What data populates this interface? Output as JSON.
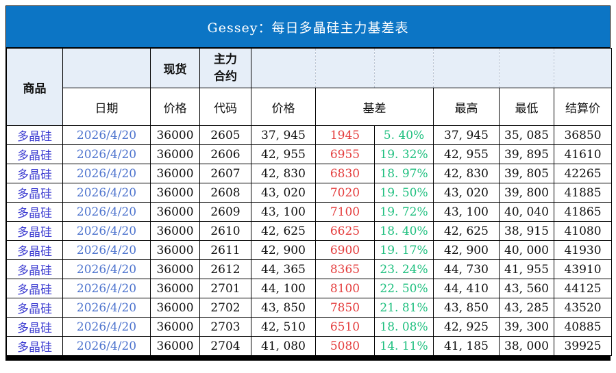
{
  "title": "Gessey：每日多晶硅主力基差表",
  "header": {
    "product": "商品",
    "spot_group": "现货",
    "main_contract_group": "主力合约",
    "date": "日期",
    "spot_price": "价格",
    "code": "代码",
    "price": "价格",
    "basis": "基差",
    "high": "最高",
    "low": "最低",
    "settle": "结算价"
  },
  "colors": {
    "title_bar": "#0C75C5",
    "title_text": "#ffffff",
    "header_tint": "#E6EEF8",
    "product_text": "#3A3AD0",
    "date_text": "#4E74CE",
    "basis_text": "#E43B3B",
    "basis_pct_text": "#1DBF7E",
    "body_text": "#101010",
    "grid": "#000000"
  },
  "rows": [
    {
      "product": "多晶硅",
      "date": "2026/4/20",
      "spot": "36000",
      "code": "2605",
      "price": "37, 945",
      "basis": "1945",
      "basis_pct": "5. 40%",
      "high": "37, 945",
      "low": "35, 085",
      "settle": "36850"
    },
    {
      "product": "多晶硅",
      "date": "2026/4/20",
      "spot": "36000",
      "code": "2606",
      "price": "42, 955",
      "basis": "6955",
      "basis_pct": "19. 32%",
      "high": "42, 955",
      "low": "39, 895",
      "settle": "41610"
    },
    {
      "product": "多晶硅",
      "date": "2026/4/20",
      "spot": "36000",
      "code": "2607",
      "price": "42, 830",
      "basis": "6830",
      "basis_pct": "18. 97%",
      "high": "42, 830",
      "low": "39, 805",
      "settle": "42265"
    },
    {
      "product": "多晶硅",
      "date": "2026/4/20",
      "spot": "36000",
      "code": "2608",
      "price": "43, 020",
      "basis": "7020",
      "basis_pct": "19. 50%",
      "high": "43, 020",
      "low": "39, 800",
      "settle": "41885"
    },
    {
      "product": "多晶硅",
      "date": "2026/4/20",
      "spot": "36000",
      "code": "2609",
      "price": "43, 100",
      "basis": "7100",
      "basis_pct": "19. 72%",
      "high": "43, 100",
      "low": "40, 040",
      "settle": "41865"
    },
    {
      "product": "多晶硅",
      "date": "2026/4/20",
      "spot": "36000",
      "code": "2610",
      "price": "42, 625",
      "basis": "6625",
      "basis_pct": "18. 40%",
      "high": "42, 625",
      "low": "38, 915",
      "settle": "41080"
    },
    {
      "product": "多晶硅",
      "date": "2026/4/20",
      "spot": "36000",
      "code": "2611",
      "price": "42, 900",
      "basis": "6900",
      "basis_pct": "19. 17%",
      "high": "42, 900",
      "low": "40, 000",
      "settle": "41930"
    },
    {
      "product": "多晶硅",
      "date": "2026/4/20",
      "spot": "36000",
      "code": "2612",
      "price": "44, 365",
      "basis": "8365",
      "basis_pct": "23. 24%",
      "high": "44, 730",
      "low": "41, 955",
      "settle": "43910"
    },
    {
      "product": "多晶硅",
      "date": "2026/4/20",
      "spot": "36000",
      "code": "2701",
      "price": "44, 100",
      "basis": "8100",
      "basis_pct": "22. 50%",
      "high": "44, 410",
      "low": "43, 560",
      "settle": "44125"
    },
    {
      "product": "多晶硅",
      "date": "2026/4/20",
      "spot": "36000",
      "code": "2702",
      "price": "43, 850",
      "basis": "7850",
      "basis_pct": "21. 81%",
      "high": "43, 850",
      "low": "43, 285",
      "settle": "43520"
    },
    {
      "product": "多晶硅",
      "date": "2026/4/20",
      "spot": "36000",
      "code": "2703",
      "price": "42, 510",
      "basis": "6510",
      "basis_pct": "18. 08%",
      "high": "42, 925",
      "low": "39, 300",
      "settle": "40885"
    },
    {
      "product": "多晶硅",
      "date": "2026/4/20",
      "spot": "36000",
      "code": "2704",
      "price": "41, 080",
      "basis": "5080",
      "basis_pct": "14. 11%",
      "high": "41, 185",
      "low": "38, 000",
      "settle": "39925"
    }
  ],
  "chart_data": {
    "type": "table",
    "title": "Gessey：每日多晶硅主力基差表",
    "columns": [
      "商品",
      "日期",
      "现货价格",
      "主力合约代码",
      "主力合约价格",
      "基差",
      "基差%",
      "最高",
      "最低",
      "结算价"
    ],
    "rows": [
      [
        "多晶硅",
        "2026/4/20",
        36000,
        "2605",
        37945,
        1945,
        "5.40%",
        37945,
        35085,
        36850
      ],
      [
        "多晶硅",
        "2026/4/20",
        36000,
        "2606",
        42955,
        6955,
        "19.32%",
        42955,
        39895,
        41610
      ],
      [
        "多晶硅",
        "2026/4/20",
        36000,
        "2607",
        42830,
        6830,
        "18.97%",
        42830,
        39805,
        42265
      ],
      [
        "多晶硅",
        "2026/4/20",
        36000,
        "2608",
        43020,
        7020,
        "19.50%",
        43020,
        39800,
        41885
      ],
      [
        "多晶硅",
        "2026/4/20",
        36000,
        "2609",
        43100,
        7100,
        "19.72%",
        43100,
        40040,
        41865
      ],
      [
        "多晶硅",
        "2026/4/20",
        36000,
        "2610",
        42625,
        6625,
        "18.40%",
        42625,
        38915,
        41080
      ],
      [
        "多晶硅",
        "2026/4/20",
        36000,
        "2611",
        42900,
        6900,
        "19.17%",
        42900,
        40000,
        41930
      ],
      [
        "多晶硅",
        "2026/4/20",
        36000,
        "2612",
        44365,
        8365,
        "23.24%",
        44730,
        41955,
        43910
      ],
      [
        "多晶硅",
        "2026/4/20",
        36000,
        "2701",
        44100,
        8100,
        "22.50%",
        44410,
        43560,
        44125
      ],
      [
        "多晶硅",
        "2026/4/20",
        36000,
        "2702",
        43850,
        7850,
        "21.81%",
        43850,
        43285,
        43520
      ],
      [
        "多晶硅",
        "2026/4/20",
        36000,
        "2703",
        42510,
        6510,
        "18.08%",
        42925,
        39300,
        40885
      ],
      [
        "多晶硅",
        "2026/4/20",
        36000,
        "2704",
        41080,
        5080,
        "14.11%",
        41185,
        38000,
        39925
      ]
    ]
  }
}
